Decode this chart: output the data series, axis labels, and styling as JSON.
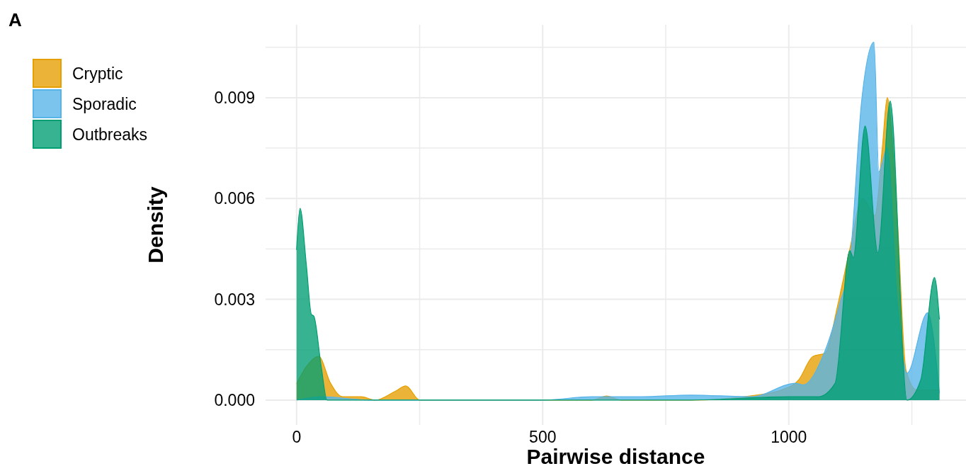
{
  "chart_data": {
    "type": "area",
    "xlabel": "Pairwise distance",
    "ylabel": "Density",
    "annotations": [
      "A"
    ],
    "legend": "top left",
    "grid": true,
    "xlim": [
      -63,
      1360
    ],
    "ylim": [
      -0.00074,
      0.01117
    ],
    "xticks": [
      0,
      {
        "value": 250,
        "label": null
      },
      500,
      {
        "value": 750,
        "label": null
      },
      1000,
      {
        "value": 1250,
        "label": null
      }
    ],
    "yticks": [
      {
        "value": 0,
        "label": "0.000"
      },
      {
        "value": 0.0015,
        "label": null
      },
      {
        "value": 0.003,
        "label": "0.003"
      },
      {
        "value": 0.0045,
        "label": null
      },
      {
        "value": 0.006,
        "label": "0.006"
      },
      {
        "value": 0.0075,
        "label": null
      },
      {
        "value": 0.009,
        "label": "0.009"
      },
      {
        "value": 0.0105,
        "label": null
      }
    ],
    "series": [
      {
        "name": "Cryptic",
        "color": "#e69f00",
        "x": [
          0,
          20,
          45,
          69,
          93,
          131,
          160,
          199,
          222,
          250,
          400,
          600,
          630,
          660,
          800,
          935,
          985,
          1020,
          1049,
          1074,
          1099,
          1124,
          1150,
          1175,
          1190,
          1200,
          1220,
          1238,
          1260,
          1306
        ],
        "values": [
          0.00049,
          0.001,
          0.0013,
          0.0005,
          0.0001,
          0.0001,
          0,
          0.00025,
          0.00042,
          0,
          0,
          0,
          0.00012,
          0,
          0,
          0.00015,
          0.0003,
          0.0006,
          0.0013,
          0.0014,
          0.0028,
          0.0045,
          0.006,
          0.0055,
          0.0075,
          0.009,
          0.0055,
          0.0009,
          0.0003,
          0.0003
        ]
      },
      {
        "name": "Sporadic",
        "color": "#56b4e9",
        "x": [
          0,
          50,
          150,
          300,
          500,
          600,
          700,
          800,
          925,
          1014,
          1029,
          1069,
          1104,
          1124,
          1148,
          1173,
          1183,
          1200,
          1220,
          1240,
          1282,
          1306
        ],
        "values": [
          0,
          0.0001,
          0,
          0,
          0,
          0.0001,
          0.0001,
          0.00015,
          0.0001,
          0.0005,
          0.00045,
          0.0013,
          0.0029,
          0.0041,
          0.0089,
          0.01065,
          0.0068,
          0.0075,
          0.003,
          0.0008,
          0.0026,
          0.0002
        ]
      },
      {
        "name": "Outbreaks",
        "color": "#009e73",
        "x": [
          0,
          7,
          20,
          30,
          35,
          50,
          62,
          100,
          400,
          800,
          1000,
          1060,
          1094,
          1124,
          1131,
          1155,
          1181,
          1206,
          1240,
          1268,
          1296,
          1306
        ],
        "values": [
          0.00447,
          0.00571,
          0.004,
          0.00255,
          0.0025,
          0.001,
          0,
          0,
          0,
          0,
          0.0001,
          0.0001,
          0.0005,
          0.00445,
          0.00424,
          0.00816,
          0.00439,
          0.0089,
          0,
          0.0006,
          0.00365,
          0.0024
        ]
      }
    ]
  }
}
